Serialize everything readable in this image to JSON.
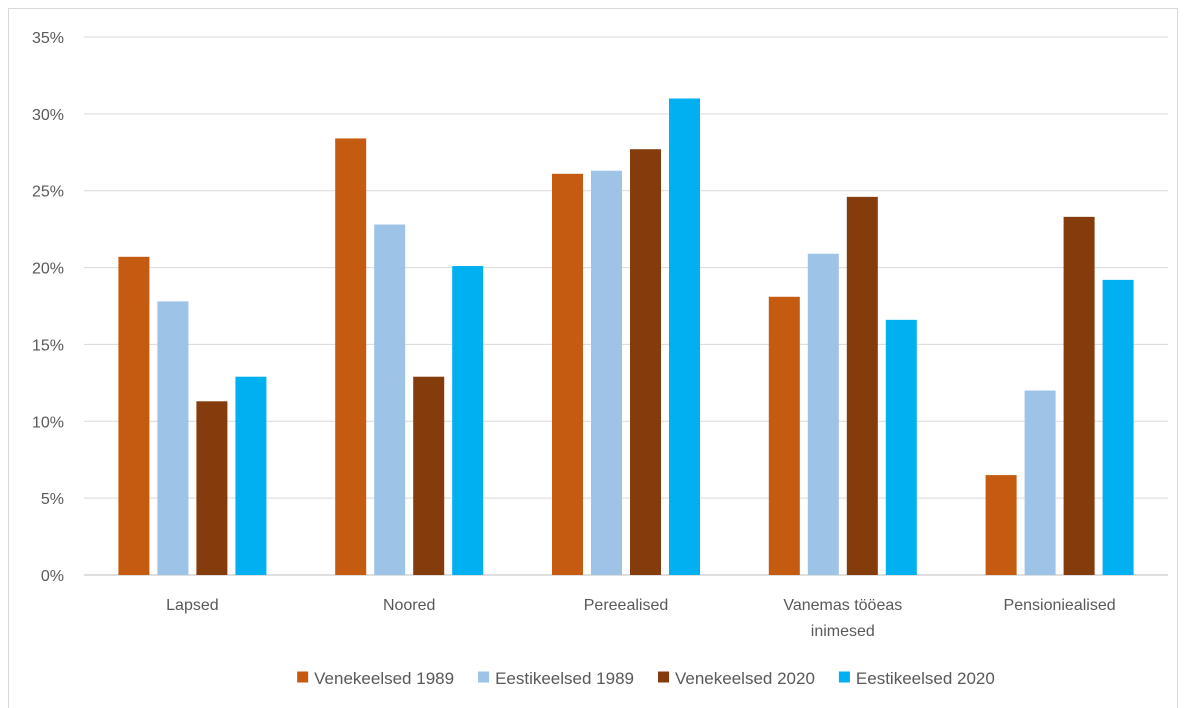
{
  "chart_data": {
    "type": "bar",
    "categories": [
      [
        "Lapsed"
      ],
      [
        "Noored"
      ],
      [
        "Pereealised"
      ],
      [
        "Vanemas tööeas",
        "inimesed"
      ],
      [
        "Pensioniealised"
      ]
    ],
    "series": [
      {
        "name": "Venekeelsed 1989",
        "color": "#C55A11",
        "values": [
          20.7,
          28.4,
          26.1,
          18.1,
          6.5
        ]
      },
      {
        "name": "Eestikeelsed 1989",
        "color": "#9DC3E6",
        "values": [
          17.8,
          22.8,
          26.3,
          20.9,
          12.0
        ]
      },
      {
        "name": "Venekeelsed 2020",
        "color": "#843C0C",
        "values": [
          11.3,
          12.9,
          27.7,
          24.6,
          23.3
        ]
      },
      {
        "name": "Eestikeelsed 2020",
        "color": "#00B0F0",
        "values": [
          12.9,
          20.1,
          31.0,
          16.6,
          19.2
        ]
      }
    ],
    "y_ticks": [
      "0%",
      "5%",
      "10%",
      "15%",
      "20%",
      "25%",
      "30%",
      "35%"
    ],
    "ylim": [
      0,
      35
    ],
    "grid": true,
    "legend_position": "bottom",
    "title": "",
    "xlabel": "",
    "ylabel": ""
  }
}
